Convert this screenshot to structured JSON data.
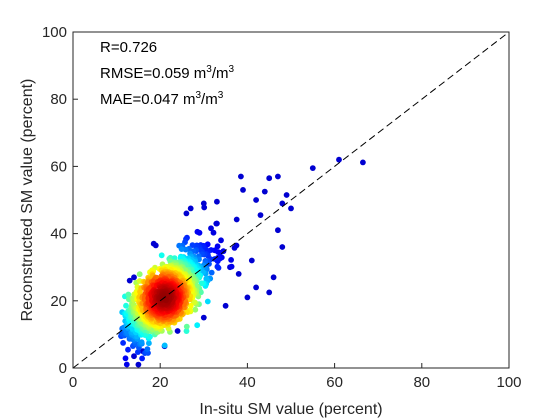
{
  "chart_data": {
    "type": "scatter",
    "title": "",
    "xlabel": "In-situ SM value (percent)",
    "ylabel": "Reconstructed SM value (percent)",
    "xlim": [
      0,
      100
    ],
    "ylim": [
      0,
      100
    ],
    "xticks": [
      0,
      20,
      40,
      60,
      80,
      100
    ],
    "yticks": [
      0,
      20,
      40,
      60,
      80,
      100
    ],
    "grid": false,
    "color_encoding": "point density (blue = low, red = high)",
    "reference_line": {
      "style": "dashed",
      "color": "#000000",
      "points": [
        [
          0,
          0
        ],
        [
          100,
          100
        ]
      ]
    },
    "annotations": {
      "r": "R=0.726",
      "rmse_prefix": "RMSE=0.059 m",
      "rmse_unit": "/m",
      "mae_prefix": "MAE=0.047 m",
      "mae_unit": "/m",
      "superscript": "3"
    },
    "outliers": [
      {
        "x": 66.5,
        "y": 61.2
      },
      {
        "x": 61.0,
        "y": 62.0
      },
      {
        "x": 55.0,
        "y": 59.5
      },
      {
        "x": 47.0,
        "y": 57.0
      },
      {
        "x": 45.0,
        "y": 56.5
      },
      {
        "x": 38.5,
        "y": 57.0
      },
      {
        "x": 39.0,
        "y": 53.0
      },
      {
        "x": 44.0,
        "y": 52.5
      },
      {
        "x": 49.0,
        "y": 51.5
      },
      {
        "x": 48.0,
        "y": 49.0
      },
      {
        "x": 50.0,
        "y": 47.5
      },
      {
        "x": 42.0,
        "y": 50.0
      },
      {
        "x": 30.0,
        "y": 49.0
      },
      {
        "x": 33.0,
        "y": 49.5
      },
      {
        "x": 27.0,
        "y": 47.5
      },
      {
        "x": 26.0,
        "y": 46.0
      },
      {
        "x": 19.0,
        "y": 36.5
      },
      {
        "x": 18.5,
        "y": 37.0
      },
      {
        "x": 14.0,
        "y": 27.0
      },
      {
        "x": 13.0,
        "y": 26.0
      },
      {
        "x": 12.5,
        "y": 15.5
      },
      {
        "x": 13.0,
        "y": 12.0
      },
      {
        "x": 15.0,
        "y": 1.0
      },
      {
        "x": 14.0,
        "y": 3.5
      },
      {
        "x": 16.0,
        "y": 5.0
      },
      {
        "x": 21.0,
        "y": 6.5
      },
      {
        "x": 24.0,
        "y": 11.0
      },
      {
        "x": 30.0,
        "y": 15.0
      },
      {
        "x": 35.0,
        "y": 18.5
      },
      {
        "x": 40.0,
        "y": 21.0
      },
      {
        "x": 42.0,
        "y": 24.0
      },
      {
        "x": 45.0,
        "y": 22.5
      },
      {
        "x": 46.0,
        "y": 27.0
      },
      {
        "x": 48.0,
        "y": 36.0
      },
      {
        "x": 47.0,
        "y": 41.0
      },
      {
        "x": 43.0,
        "y": 45.5
      },
      {
        "x": 41.0,
        "y": 32.0
      },
      {
        "x": 36.0,
        "y": 30.0
      },
      {
        "x": 33.0,
        "y": 43.0
      },
      {
        "x": 38.0,
        "y": 28.0
      }
    ],
    "cluster": {
      "description": "dense cloud of points colored by density, centered near (21, 21)",
      "center": [
        21,
        21
      ],
      "spread": [
        5.5,
        7.5
      ],
      "correlation": 0.72,
      "count": 1100
    }
  }
}
